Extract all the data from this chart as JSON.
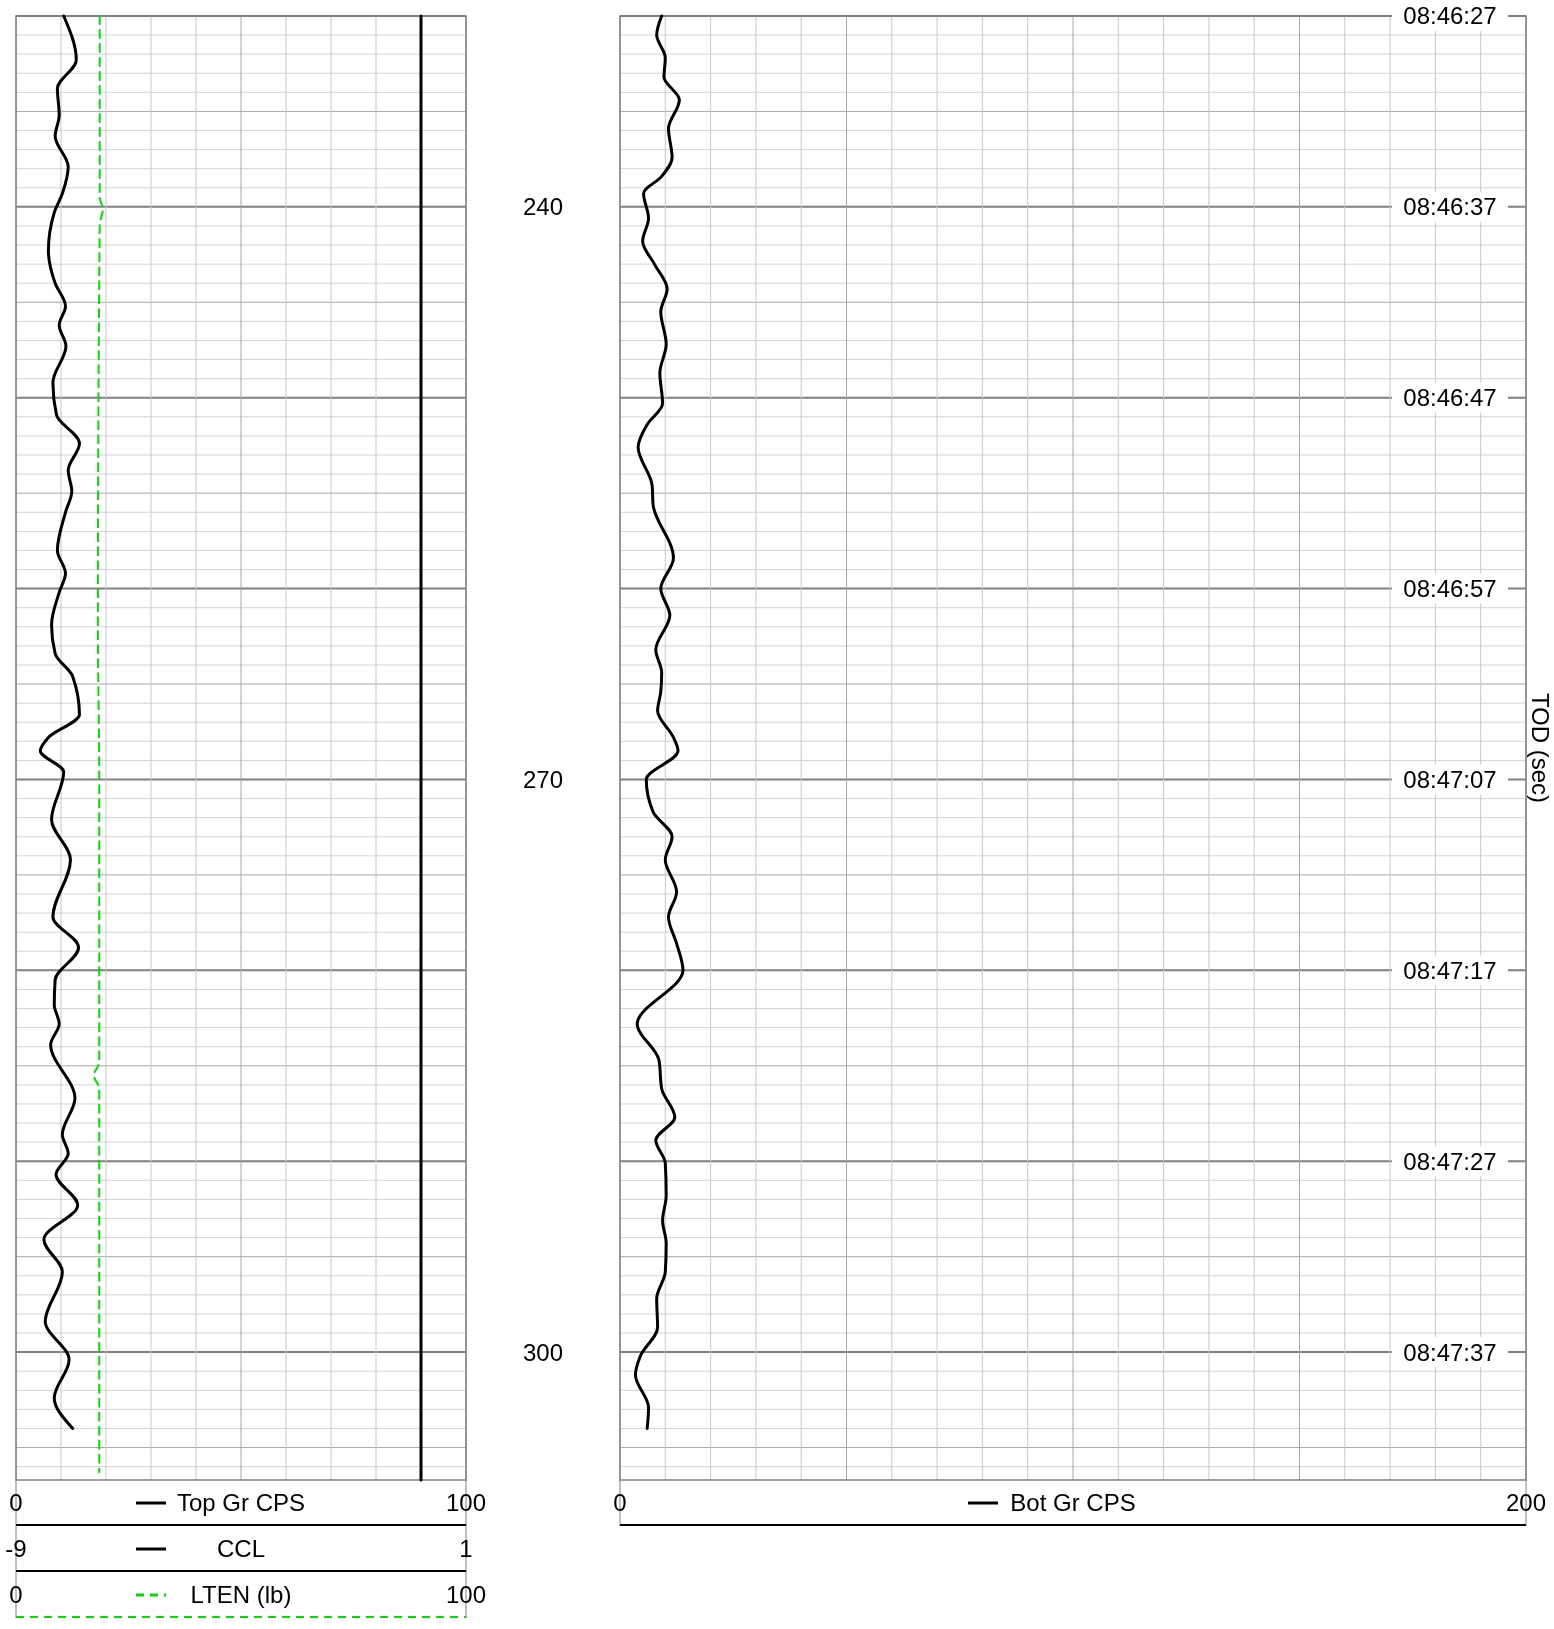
{
  "chart_data": [
    {
      "type": "line",
      "legend": "bottom",
      "grid": true,
      "tick_labels": "x",
      "ylim": [
        306.7,
        230
      ],
      "yticks": [
        230,
        231,
        232,
        233,
        234,
        235,
        236,
        237,
        238,
        239,
        240,
        241,
        242,
        243,
        244,
        245,
        246,
        247,
        248,
        249,
        250,
        251,
        252,
        253,
        254,
        255,
        256,
        257,
        258,
        259,
        260,
        261,
        262,
        263,
        264,
        265,
        266,
        267,
        268,
        269,
        270,
        271,
        272,
        273,
        274,
        275,
        276,
        277,
        278,
        279,
        280,
        281,
        282,
        283,
        284,
        285,
        286,
        287,
        288,
        289,
        290,
        291,
        292,
        293,
        294,
        295,
        296,
        297,
        298,
        299,
        300,
        301,
        302,
        303,
        304,
        305,
        306
      ],
      "xlim": [
        0,
        100
      ],
      "xticks": [
        0,
        {
          "value": 10,
          "label": null
        },
        {
          "value": 20,
          "label": null
        },
        {
          "value": 30,
          "label": null
        },
        {
          "value": 40,
          "label": null
        },
        {
          "value": 50,
          "label": null
        },
        {
          "value": 60,
          "label": null
        },
        {
          "value": 70,
          "label": null
        },
        {
          "value": 80,
          "label": null
        },
        {
          "value": 90,
          "label": null
        },
        100
      ],
      "x2lim": [
        -9,
        1
      ],
      "x2ticks": [
        -9,
        1
      ],
      "annotations": [
        "0",
        "100"
      ],
      "series": [
        {
          "name": "Top Gr CPS",
          "color": "#000000",
          "line_style": "solid",
          "x": [
            10.6,
            13.4,
            9.2,
            9.6,
            8.7,
            11.6,
            10.3,
            8.5,
            7.2,
            8.7,
            11.0,
            9.6,
            11.1,
            8.2,
            9.0,
            14.1,
            11.6,
            12.4,
            11.0,
            9.2,
            11.0,
            9.6,
            7.9,
            8.7,
            12.6,
            14.1,
            7.2,
            5.4,
            10.6,
            7.9,
            12.1,
            8.2,
            13.9,
            8.7,
            8.5,
            9.6,
            7.7,
            13.1,
            10.3,
            11.6,
            8.9,
            13.7,
            6.2,
            10.3,
            6.5,
            11.8,
            8.5,
            12.6
          ],
          "values": [
            230.0,
            232.3,
            233.8,
            235.2,
            236.3,
            237.9,
            239.3,
            240.3,
            242.3,
            244.0,
            245.2,
            246.2,
            247.3,
            249.2,
            250.9,
            252.4,
            253.8,
            254.9,
            256.0,
            258.0,
            259.2,
            260.2,
            261.9,
            263.4,
            264.6,
            266.6,
            267.8,
            268.5,
            269.6,
            272.1,
            274.2,
            277.2,
            278.8,
            280.5,
            281.8,
            282.8,
            283.9,
            286.7,
            288.6,
            289.6,
            290.7,
            292.3,
            294.1,
            295.8,
            298.4,
            300.4,
            302.4,
            304.0
          ]
        },
        {
          "name": "CCL",
          "color": "#000000",
          "line_style": "solid",
          "axis": "x2",
          "x": [
            0,
            0
          ],
          "values": [
            230,
            306.7
          ]
        },
        {
          "name": "LTEN (lb)",
          "color": "#00dd00",
          "line_style": "dashed",
          "x": [
            18.6,
            18.6,
            19.3,
            18.6,
            18.2,
            18.5,
            18.5,
            17.3,
            18.5,
            18.5,
            18.5
          ],
          "values": [
            230,
            239.5,
            240.1,
            241,
            262,
            270,
            284.8,
            285.5,
            286.2,
            299,
            306.3
          ]
        }
      ]
    },
    {
      "type": "line",
      "legend": "bottom",
      "grid": true,
      "ylim": [
        306.7,
        230
      ],
      "yticks": [
        {
          "value": 230,
          "label": null
        },
        {
          "value": 231,
          "label": null
        },
        {
          "value": 232,
          "label": null
        },
        {
          "value": 233,
          "label": null
        },
        {
          "value": 234,
          "label": null
        },
        {
          "value": 235,
          "label": null
        },
        {
          "value": 236,
          "label": null
        },
        {
          "value": 237,
          "label": null
        },
        {
          "value": 238,
          "label": null
        },
        {
          "value": 239,
          "label": null
        },
        240,
        {
          "value": 241,
          "label": null
        },
        {
          "value": 242,
          "label": null
        },
        {
          "value": 243,
          "label": null
        },
        {
          "value": 244,
          "label": null
        },
        {
          "value": 245,
          "label": null
        },
        {
          "value": 246,
          "label": null
        },
        {
          "value": 247,
          "label": null
        },
        {
          "value": 248,
          "label": null
        },
        {
          "value": 249,
          "label": null
        },
        {
          "value": 250,
          "label": null
        },
        {
          "value": 251,
          "label": null
        },
        {
          "value": 252,
          "label": null
        },
        {
          "value": 253,
          "label": null
        },
        {
          "value": 254,
          "label": null
        },
        {
          "value": 255,
          "label": null
        },
        {
          "value": 256,
          "label": null
        },
        {
          "value": 257,
          "label": null
        },
        {
          "value": 258,
          "label": null
        },
        {
          "value": 259,
          "label": null
        },
        {
          "value": 260,
          "label": null
        },
        {
          "value": 261,
          "label": null
        },
        {
          "value": 262,
          "label": null
        },
        {
          "value": 263,
          "label": null
        },
        {
          "value": 264,
          "label": null
        },
        {
          "value": 265,
          "label": null
        },
        {
          "value": 266,
          "label": null
        },
        {
          "value": 267,
          "label": null
        },
        {
          "value": 268,
          "label": null
        },
        {
          "value": 269,
          "label": null
        },
        270,
        {
          "value": 271,
          "label": null
        },
        {
          "value": 272,
          "label": null
        },
        {
          "value": 273,
          "label": null
        },
        {
          "value": 274,
          "label": null
        },
        {
          "value": 275,
          "label": null
        },
        {
          "value": 276,
          "label": null
        },
        {
          "value": 277,
          "label": null
        },
        {
          "value": 278,
          "label": null
        },
        {
          "value": 279,
          "label": null
        },
        {
          "value": 280,
          "label": null
        },
        {
          "value": 281,
          "label": null
        },
        {
          "value": 282,
          "label": null
        },
        {
          "value": 283,
          "label": null
        },
        {
          "value": 284,
          "label": null
        },
        {
          "value": 285,
          "label": null
        },
        {
          "value": 286,
          "label": null
        },
        {
          "value": 287,
          "label": null
        },
        {
          "value": 288,
          "label": null
        },
        {
          "value": 289,
          "label": null
        },
        {
          "value": 290,
          "label": null
        },
        {
          "value": 291,
          "label": null
        },
        {
          "value": 292,
          "label": null
        },
        {
          "value": 293,
          "label": null
        },
        {
          "value": 294,
          "label": null
        },
        {
          "value": 295,
          "label": null
        },
        {
          "value": 296,
          "label": null
        },
        {
          "value": 297,
          "label": null
        },
        {
          "value": 298,
          "label": null
        },
        {
          "value": 299,
          "label": null
        },
        300,
        {
          "value": 301,
          "label": null
        },
        {
          "value": 302,
          "label": null
        },
        {
          "value": 303,
          "label": null
        },
        {
          "value": 304,
          "label": null
        },
        {
          "value": 305,
          "label": null
        },
        {
          "value": 306,
          "label": null
        }
      ],
      "xlim": [
        0,
        200
      ],
      "xticks": [
        0,
        {
          "value": 10,
          "label": null
        },
        {
          "value": 20,
          "label": null
        },
        {
          "value": 30,
          "label": null
        },
        {
          "value": 40,
          "label": null
        },
        {
          "value": 50,
          "label": null
        },
        {
          "value": 60,
          "label": null
        },
        {
          "value": 70,
          "label": null
        },
        {
          "value": 80,
          "label": null
        },
        {
          "value": 90,
          "label": null
        },
        {
          "value": 100,
          "label": null
        },
        {
          "value": 110,
          "label": null
        },
        {
          "value": 120,
          "label": null
        },
        {
          "value": 130,
          "label": null
        },
        {
          "value": 140,
          "label": null
        },
        {
          "value": 150,
          "label": null
        },
        {
          "value": 160,
          "label": null
        },
        {
          "value": 170,
          "label": null
        },
        {
          "value": 180,
          "label": null
        },
        {
          "value": 190,
          "label": null
        },
        200
      ],
      "y2label": "TOD (sec)",
      "y2lim": [
        8.7954722,
        8.7741667
      ],
      "y2ticks": [
        {
          "value": 8.7741667,
          "label": "08:46:27"
        },
        {
          "value": 8.7769444,
          "label": "08:46:37"
        },
        {
          "value": 8.7797222,
          "label": "08:46:47"
        },
        {
          "value": 8.7825,
          "label": "08:46:57"
        },
        {
          "value": 8.7852778,
          "label": "08:47:07"
        },
        {
          "value": 8.7880556,
          "label": "08:47:17"
        },
        {
          "value": 8.7908333,
          "label": "08:47:27"
        },
        {
          "value": 8.7936111,
          "label": "08:47:37"
        }
      ],
      "series": [
        {
          "name": "Bot Gr CPS",
          "color": "#000000",
          "line_style": "solid",
          "x": [
            9.2,
            8.1,
            10.0,
            9.7,
            13.1,
            10.7,
            11.5,
            9.2,
            5.2,
            6.3,
            5.0,
            7.6,
            10.4,
            9.0,
            10.2,
            8.8,
            9.4,
            6.0,
            4.0,
            7.1,
            7.3,
            11.8,
            9.0,
            11.0,
            7.9,
            9.2,
            9.0,
            8.3,
            11.8,
            12.8,
            5.8,
            7.3,
            11.5,
            10.0,
            12.5,
            10.7,
            12.5,
            13.9,
            3.8,
            8.6,
            9.2,
            12.1,
            7.9,
            10.0,
            10.2,
            9.4,
            10.2,
            10.0,
            8.1,
            8.3,
            4.5,
            3.4,
            6.3,
            6.0
          ],
          "values": [
            230,
            231.0,
            232.2,
            233.2,
            234.4,
            235.9,
            237.4,
            238.4,
            239.3,
            240.6,
            241.8,
            243.0,
            244.3,
            245.5,
            247.2,
            248.7,
            250.3,
            251.4,
            252.6,
            254.6,
            255.6,
            258.4,
            260.0,
            261.4,
            263.2,
            264.4,
            265.4,
            266.4,
            267.8,
            268.5,
            270.0,
            271.7,
            273.0,
            274.2,
            275.9,
            277.2,
            278.6,
            280.0,
            282.8,
            284.7,
            286.2,
            287.7,
            288.9,
            290.1,
            291.8,
            293.1,
            294.3,
            295.8,
            297.2,
            298.7,
            300.2,
            301.2,
            302.9,
            304.0
          ]
        }
      ]
    }
  ]
}
